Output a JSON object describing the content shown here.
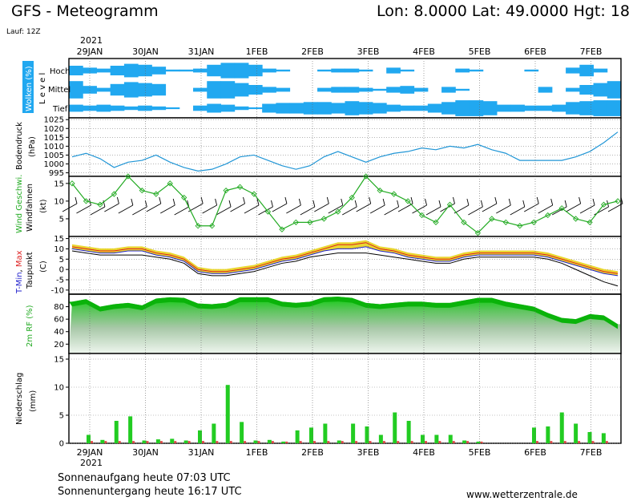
{
  "header": {
    "title": "GFS - Meteogramm",
    "location": "Lon: 8.0000  Lat: 49.0000  Hgt: 18",
    "run": "Lauf: 12Z"
  },
  "axis": {
    "year": "2021",
    "date_labels": [
      "29JAN",
      "30JAN",
      "31JAN",
      "1FEB",
      "2FEB",
      "3FEB",
      "4FEB",
      "5FEB",
      "6FEB",
      "7FEB"
    ]
  },
  "footer": {
    "sunrise": "Sonnenaufgang heute 07:03 UTC",
    "sunset": "Sonnenuntergang heute 16:17 UTC",
    "website": "www.wetterzentrale.de"
  },
  "colors": {
    "cloud": "#21a8f0",
    "pressure": "#2196d6",
    "wind": "#22aa22",
    "temp_min": "#2020cc",
    "temp_max": "#dd2020",
    "humidity_dark": "#0ecc0e",
    "precip_conv": "#22cc22",
    "precip_strat": "#dd4444"
  },
  "chart_data": [
    {
      "type": "heatmap",
      "panel": "clouds",
      "ylabel": "Wolken (%)",
      "level_axis": "L e v e l",
      "levels": [
        "Hoch",
        "Mittel",
        "Tief"
      ],
      "days": 10,
      "coverage_high": [
        0.5,
        0.3,
        0.2,
        0.5,
        0.7,
        0.6,
        0.4,
        0.1,
        0.1,
        0.2,
        0.6,
        0.8,
        0.8,
        0.6,
        0.2,
        0.1,
        0.0,
        0.0,
        0.1,
        0.2,
        0.2,
        0.1,
        0.0,
        0.3,
        0.1,
        0.0,
        0.0,
        0.0,
        0.2,
        0.1,
        0.0,
        0.0,
        0.0,
        0.1,
        0.0,
        0.0,
        0.3,
        0.6,
        0.2,
        0.0
      ],
      "coverage_middle": [
        0.9,
        0.4,
        0.2,
        0.6,
        0.8,
        0.7,
        0.6,
        0.0,
        0.0,
        0.2,
        0.9,
        0.9,
        0.7,
        0.5,
        0.3,
        0.2,
        0.0,
        0.0,
        0.2,
        0.3,
        0.3,
        0.2,
        0.1,
        0.3,
        0.4,
        0.2,
        0.0,
        0.3,
        0.1,
        0.0,
        0.0,
        0.0,
        0.0,
        0.0,
        0.3,
        0.0,
        0.2,
        0.5,
        0.7,
        0.9
      ],
      "coverage_low": [
        0.4,
        0.3,
        0.4,
        0.3,
        0.2,
        0.3,
        0.2,
        0.1,
        0.0,
        0.3,
        0.5,
        0.4,
        0.2,
        0.1,
        0.5,
        0.6,
        0.6,
        0.7,
        0.7,
        0.6,
        0.8,
        0.7,
        0.6,
        0.4,
        0.3,
        0.3,
        0.5,
        0.7,
        0.9,
        0.9,
        0.8,
        0.4,
        0.4,
        0.3,
        0.3,
        0.4,
        0.7,
        0.8,
        0.9,
        0.9
      ]
    },
    {
      "type": "line",
      "panel": "pressure",
      "ylabel": "Bodendruck",
      "unit": "(hPa)",
      "ylim": [
        993,
        1026
      ],
      "yticks": [
        995,
        1000,
        1005,
        1010,
        1015,
        1020,
        1025
      ],
      "grid": true,
      "x_days": [
        0,
        0.25,
        0.5,
        0.75,
        1.0,
        1.25,
        1.5,
        1.75,
        2.0,
        2.25,
        2.5,
        2.75,
        3.0,
        3.25,
        3.5,
        3.75,
        4.0,
        4.25,
        4.5,
        4.75,
        5.0,
        5.25,
        5.5,
        5.75,
        6.0,
        6.25,
        6.5,
        6.75,
        7.0,
        7.25,
        7.5,
        7.75,
        8.0,
        8.25,
        8.5,
        8.75,
        9.0,
        9.25,
        9.5,
        9.75
      ],
      "values": [
        1004,
        1006,
        1003,
        998,
        1001,
        1002,
        1005,
        1001,
        998,
        996,
        997,
        1000,
        1004,
        1005,
        1002,
        999,
        997,
        999,
        1004,
        1007,
        1004,
        1001,
        1004,
        1006,
        1007,
        1009,
        1008,
        1010,
        1009,
        1011,
        1008,
        1006,
        1002,
        1002,
        1002,
        1002,
        1004,
        1007,
        1012,
        1018
      ]
    },
    {
      "type": "line",
      "panel": "wind",
      "ylabel": "Wind Geschwi.",
      "ylabel2": "Windfahnen",
      "unit": "(kt)",
      "ylim": [
        0,
        17
      ],
      "yticks": [
        5,
        10,
        15
      ],
      "values": [
        15,
        10,
        9,
        12,
        17,
        13,
        12,
        15,
        11,
        3,
        3,
        13,
        14,
        12,
        7,
        2,
        4,
        4,
        5,
        7,
        11,
        17,
        13,
        12,
        10,
        6,
        4,
        9,
        4,
        1,
        5,
        4,
        3,
        4,
        6,
        8,
        5,
        4,
        9,
        10
      ]
    },
    {
      "type": "line",
      "panel": "temperature",
      "ylabel": "T-Min, Max",
      "ylabel2": "Taupunkt",
      "unit": "(C)",
      "ylim": [
        -12,
        16
      ],
      "yticks": [
        -10,
        -5,
        0,
        5,
        10,
        15
      ],
      "series": [
        {
          "name": "T-Max",
          "values": [
            11,
            10,
            9,
            9,
            10,
            10,
            8,
            7,
            5,
            0,
            -1,
            -1,
            0,
            1,
            3,
            5,
            6,
            8,
            10,
            12,
            12,
            13,
            10,
            9,
            7,
            6,
            5,
            5,
            7,
            8,
            8,
            8,
            8,
            8,
            7,
            5,
            3,
            1,
            -1,
            -2
          ]
        },
        {
          "name": "T-Min",
          "values": [
            10,
            9,
            8,
            8,
            9,
            9,
            7,
            6,
            4,
            -1,
            -2,
            -2,
            -1,
            0,
            2,
            4,
            5,
            7,
            9,
            10,
            10,
            11,
            9,
            8,
            6,
            5,
            4,
            4,
            6,
            7,
            7,
            7,
            7,
            7,
            6,
            4,
            2,
            0,
            -2,
            -3
          ]
        },
        {
          "name": "Taupunkt",
          "values": [
            9,
            8,
            7,
            7,
            7,
            7,
            6,
            5,
            3,
            -2,
            -3,
            -3,
            -2,
            -1,
            1,
            3,
            4,
            6,
            7,
            8,
            8,
            8,
            7,
            6,
            5,
            4,
            3,
            3,
            5,
            6,
            6,
            6,
            6,
            6,
            5,
            3,
            0,
            -3,
            -6,
            -8
          ]
        }
      ]
    },
    {
      "type": "area",
      "panel": "humidity",
      "ylabel": "2m RF (%)",
      "ylim": [
        5,
        100
      ],
      "yticks": [
        20,
        40,
        60,
        80
      ],
      "values": [
        88,
        92,
        80,
        84,
        86,
        82,
        93,
        95,
        94,
        85,
        84,
        86,
        95,
        95,
        95,
        88,
        86,
        88,
        95,
        96,
        94,
        86,
        84,
        86,
        88,
        88,
        86,
        86,
        90,
        94,
        94,
        88,
        84,
        80,
        70,
        62,
        60,
        68,
        66,
        52
      ]
    },
    {
      "type": "bar",
      "panel": "precipitation",
      "ylabel": "Niederschlag",
      "unit": "(mm)",
      "ylim": [
        0,
        16
      ],
      "yticks": [
        0,
        5,
        10,
        15
      ],
      "x_days": [
        0,
        0.25,
        0.5,
        0.75,
        1.0,
        1.25,
        1.5,
        1.75,
        2.0,
        2.25,
        2.5,
        2.75,
        3.0,
        3.25,
        3.5,
        3.75,
        4.0,
        4.25,
        4.5,
        4.75,
        5.0,
        5.25,
        5.5,
        5.75,
        6.0,
        6.25,
        6.5,
        6.75,
        7.0,
        7.25,
        7.5,
        7.75,
        8.0,
        8.25,
        8.5,
        8.75,
        9.0,
        9.25,
        9.5,
        9.75
      ],
      "values": [
        1.5,
        0.6,
        4.0,
        4.8,
        0.5,
        0.7,
        0.8,
        0.5,
        2.3,
        3.5,
        10.4,
        3.8,
        0.5,
        0.6,
        0.3,
        2.3,
        2.8,
        3.5,
        0.5,
        3.5,
        3.0,
        1.5,
        5.5,
        4.0,
        1.5,
        1.5,
        1.5,
        0.5,
        0.3,
        0.0,
        0.0,
        0.0,
        2.8,
        3.0,
        5.5,
        3.5,
        2.0,
        1.8,
        0.0,
        0.0
      ]
    }
  ]
}
